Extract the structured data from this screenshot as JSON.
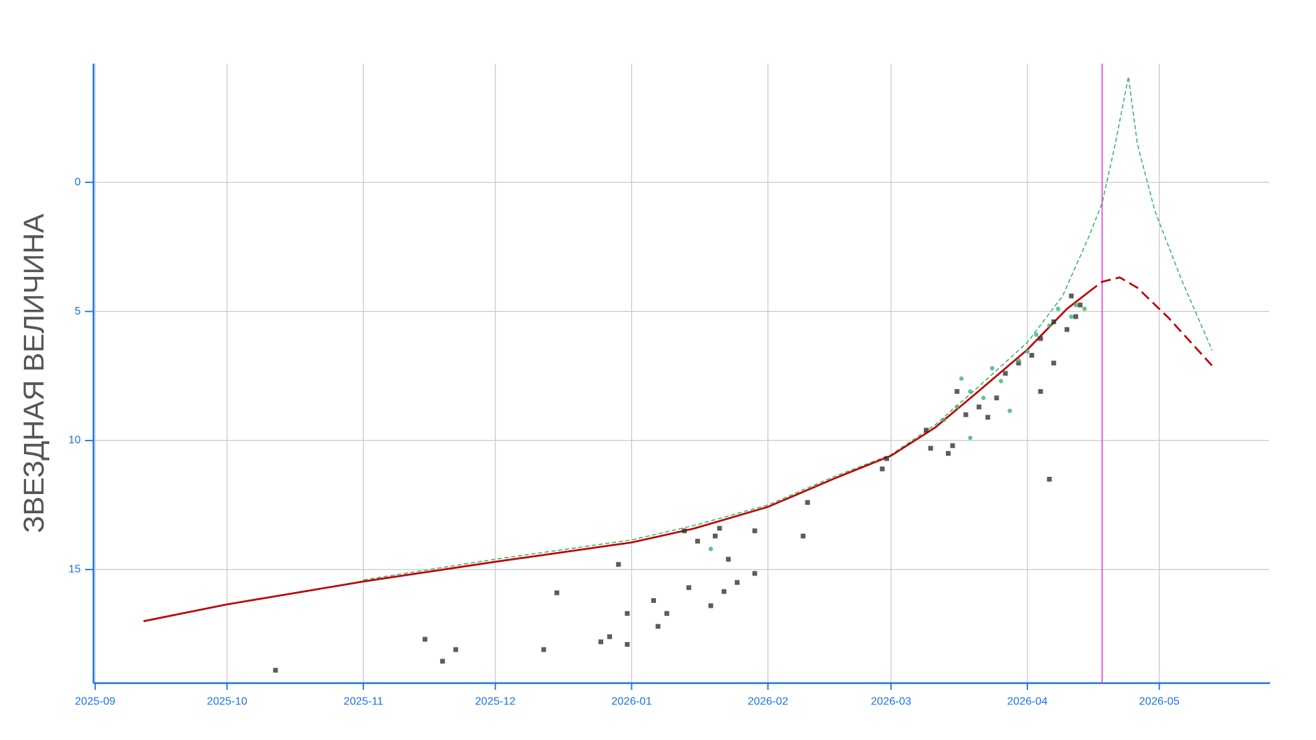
{
  "chart_data": {
    "type": "scatter",
    "y_label": "ЗВЕЗДНАЯ ВЕЛИЧИНА",
    "y_inverted": true,
    "xlim": [
      "2025-09-01",
      "2026-05-26"
    ],
    "xticks": [
      {
        "value": "2025-09-01",
        "label": "2025-09"
      },
      {
        "value": "2025-10-01",
        "label": "2025-10"
      },
      {
        "value": "2025-11-01",
        "label": "2025-11"
      },
      {
        "value": "2025-12-01",
        "label": "2025-12"
      },
      {
        "value": "2026-01-01",
        "label": "2026-01"
      },
      {
        "value": "2026-02-01",
        "label": "2026-02"
      },
      {
        "value": "2026-03-01",
        "label": "2026-03"
      },
      {
        "value": "2026-04-01",
        "label": "2026-04"
      },
      {
        "value": "2026-05-01",
        "label": "2026-05"
      }
    ],
    "ylim": [
      -4.6,
      19.4
    ],
    "yticks": [
      0,
      5,
      10,
      15
    ],
    "grid": true,
    "axis_color": "#1a73e8",
    "vline": {
      "x": "2026-04-18",
      "color": "#e040e0"
    },
    "lines": [
      {
        "color": "#3cb371",
        "dash": "5 3",
        "width": 1.3,
        "x": [
          "2025-11-01",
          "2025-12-01",
          "2026-01-01",
          "2026-01-15",
          "2026-02-01",
          "2026-02-16",
          "2026-03-01",
          "2026-03-11",
          "2026-03-20",
          "2026-04-01",
          "2026-04-09",
          "2026-04-15",
          "2026-04-18",
          "2026-04-21",
          "2026-04-24",
          "2026-04-26",
          "2026-04-30",
          "2026-05-06",
          "2026-05-13"
        ],
        "values": [
          15.4,
          14.6,
          13.85,
          13.3,
          12.5,
          11.4,
          10.55,
          9.4,
          8.05,
          6.2,
          4.4,
          2.1,
          0.8,
          -1.5,
          -4.1,
          -1.5,
          1.1,
          3.75,
          6.5
        ]
      },
      {
        "color": "#c00000",
        "dash": "",
        "width": 2.2,
        "x": [
          "2025-09-12",
          "2025-10-01",
          "2025-11-01",
          "2025-12-01",
          "2026-01-01",
          "2026-01-15",
          "2026-02-01",
          "2026-02-16",
          "2026-03-01",
          "2026-03-11",
          "2026-03-20",
          "2026-04-01",
          "2026-04-10",
          "2026-04-15"
        ],
        "values": [
          17.0,
          16.35,
          15.46,
          14.7,
          13.95,
          13.42,
          12.57,
          11.48,
          10.59,
          9.5,
          8.22,
          6.48,
          4.9,
          4.24
        ]
      },
      {
        "color": "#c00000",
        "dash": "12 6",
        "width": 2.2,
        "x": [
          "2026-04-15",
          "2026-04-18",
          "2026-04-22",
          "2026-04-26",
          "2026-05-03",
          "2026-05-13"
        ],
        "values": [
          4.24,
          3.85,
          3.68,
          4.08,
          5.23,
          7.1
        ]
      }
    ],
    "points": [
      {
        "shape": "square",
        "color": "#333333",
        "x": [
          "2025-10-12",
          "2025-11-15",
          "2025-11-19",
          "2025-11-22",
          "2025-12-12",
          "2025-12-15",
          "2025-12-25",
          "2025-12-27",
          "2025-12-29",
          "2025-12-31",
          "2025-12-31",
          "2026-01-06",
          "2026-01-07",
          "2026-01-09",
          "2026-01-13",
          "2026-01-14",
          "2026-01-16",
          "2026-01-19",
          "2026-01-20",
          "2026-01-21",
          "2026-01-22",
          "2026-01-23",
          "2026-01-25",
          "2026-01-29",
          "2026-01-29",
          "2026-02-09",
          "2026-02-10",
          "2026-02-27",
          "2026-02-28",
          "2026-03-09",
          "2026-03-10",
          "2026-03-14",
          "2026-03-15",
          "2026-03-16",
          "2026-03-18",
          "2026-03-21",
          "2026-03-23",
          "2026-03-25",
          "2026-03-27",
          "2026-03-30",
          "2026-04-02",
          "2026-04-04",
          "2026-04-06",
          "2026-04-04",
          "2026-04-07",
          "2026-04-07",
          "2026-04-10",
          "2026-04-11",
          "2026-04-12",
          "2026-04-13"
        ],
        "values": [
          18.9,
          17.7,
          18.55,
          18.1,
          18.1,
          15.9,
          17.8,
          17.6,
          14.8,
          17.9,
          16.7,
          16.2,
          17.2,
          16.7,
          13.5,
          15.7,
          13.9,
          16.4,
          13.7,
          13.4,
          15.85,
          14.6,
          15.5,
          13.5,
          15.15,
          13.7,
          12.4,
          11.1,
          10.7,
          9.6,
          10.3,
          10.5,
          10.2,
          8.1,
          9.0,
          8.7,
          9.1,
          8.35,
          7.4,
          7.0,
          6.7,
          8.1,
          11.5,
          6.05,
          5.4,
          7.0,
          5.7,
          4.4,
          5.2,
          4.75
        ]
      },
      {
        "shape": "circle",
        "color": "#3cb371",
        "x": [
          "2026-01-19",
          "2026-03-13",
          "2026-03-16",
          "2026-03-17",
          "2026-03-19",
          "2026-03-19",
          "2026-03-22",
          "2026-03-24",
          "2026-03-26",
          "2026-03-28",
          "2026-03-30",
          "2026-04-01",
          "2026-04-03",
          "2026-04-06",
          "2026-04-08",
          "2026-04-11",
          "2026-04-12",
          "2026-04-14"
        ],
        "values": [
          14.2,
          9.2,
          8.7,
          7.6,
          8.1,
          9.9,
          8.35,
          7.2,
          7.7,
          8.85,
          6.9,
          6.55,
          5.9,
          5.55,
          4.9,
          5.2,
          4.75,
          4.9
        ]
      }
    ]
  }
}
